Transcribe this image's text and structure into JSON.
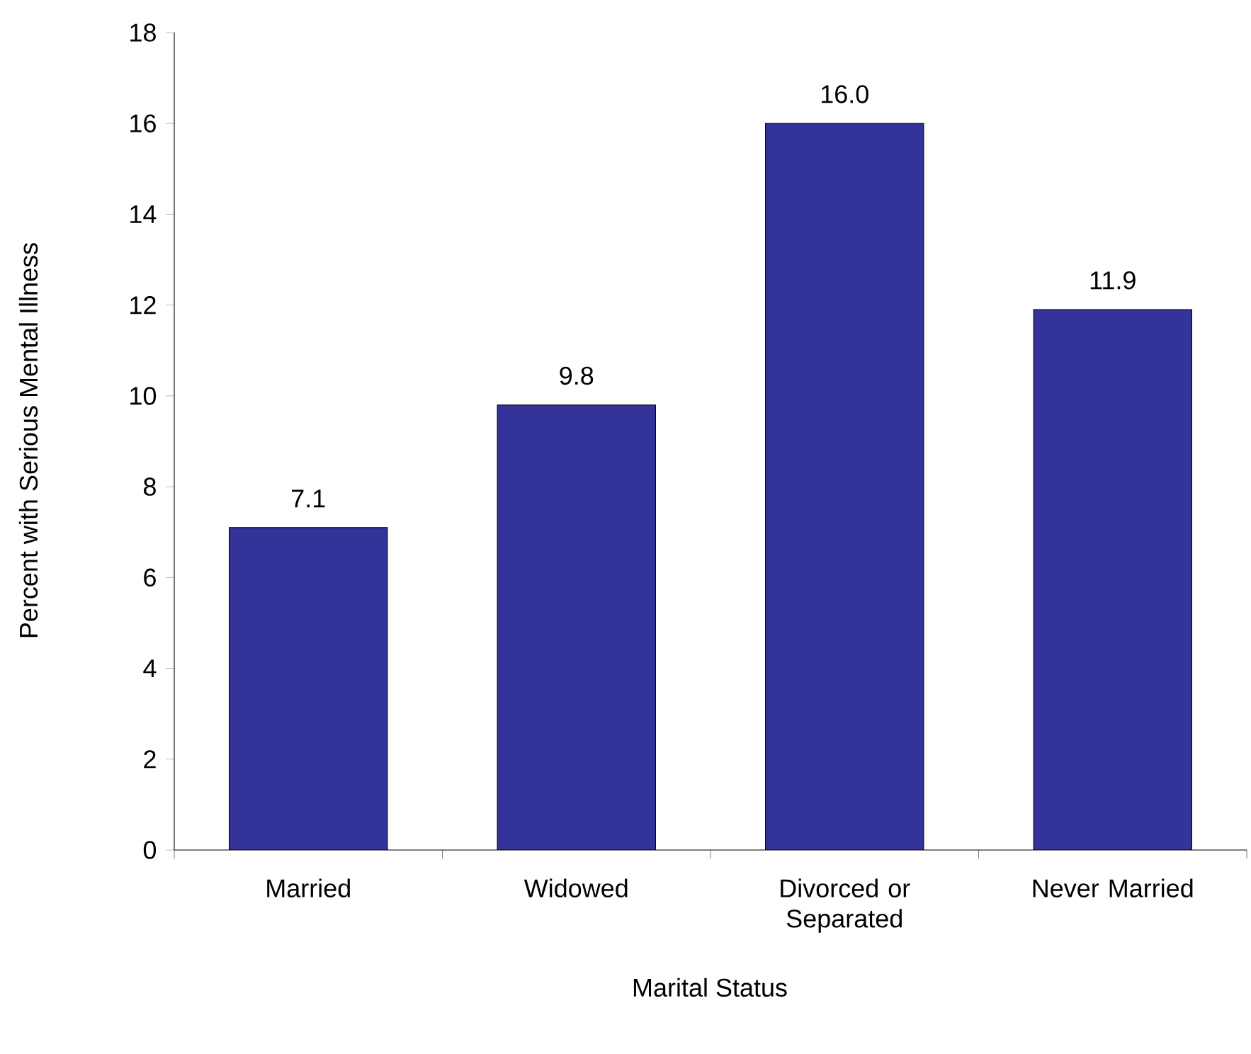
{
  "chart_data": {
    "type": "bar",
    "xlabel": "Marital Status",
    "ylabel": "Percent with Serious Mental Illness",
    "categories": [
      "Married",
      "Widowed",
      "Divorced or Separated",
      "Never Married"
    ],
    "values": [
      7.1,
      9.8,
      16.0,
      11.9
    ],
    "value_labels": [
      "7.1",
      "9.8",
      "16.0",
      "11.9"
    ],
    "color": "#333399",
    "ylim": [
      0,
      18
    ],
    "yticks": [
      0,
      2,
      4,
      6,
      8,
      10,
      12,
      14,
      16,
      18
    ]
  }
}
